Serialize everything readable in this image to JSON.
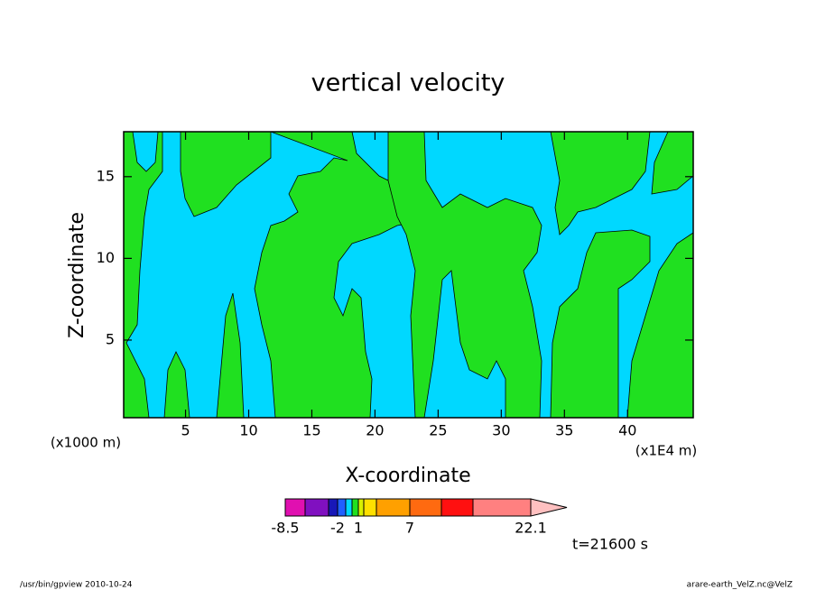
{
  "chart_data": {
    "type": "contour",
    "title": "vertical velocity",
    "x_label": "X-coordinate",
    "y_label": "Z-coordinate",
    "x_unit_left": "(x1000 m)",
    "x_unit_right": "(x1E4 m)",
    "time_label": "t=21600 s",
    "footer_left": "/usr/bin/gpview   2010-10-24",
    "footer_right": "arare-earth_VelZ.nc@VelZ",
    "xlim": [
      0.1,
      45.2
    ],
    "ylim": [
      0.25,
      17.75
    ],
    "xticks": [
      5,
      10,
      15,
      20,
      25,
      30,
      35,
      40
    ],
    "yticks": [
      5,
      10,
      15
    ],
    "colorbar": {
      "colors": [
        "#e010b0",
        "#8010c0",
        "#1818b8",
        "#2060ff",
        "#00d8ff",
        "#20e020",
        "#d8f000",
        "#ffe000",
        "#ffa000",
        "#ff6a10",
        "#ff1010",
        "#ff8080",
        "#ffc0c0"
      ],
      "labels": [
        -8.5,
        -2,
        1,
        7,
        22.1
      ]
    }
  }
}
